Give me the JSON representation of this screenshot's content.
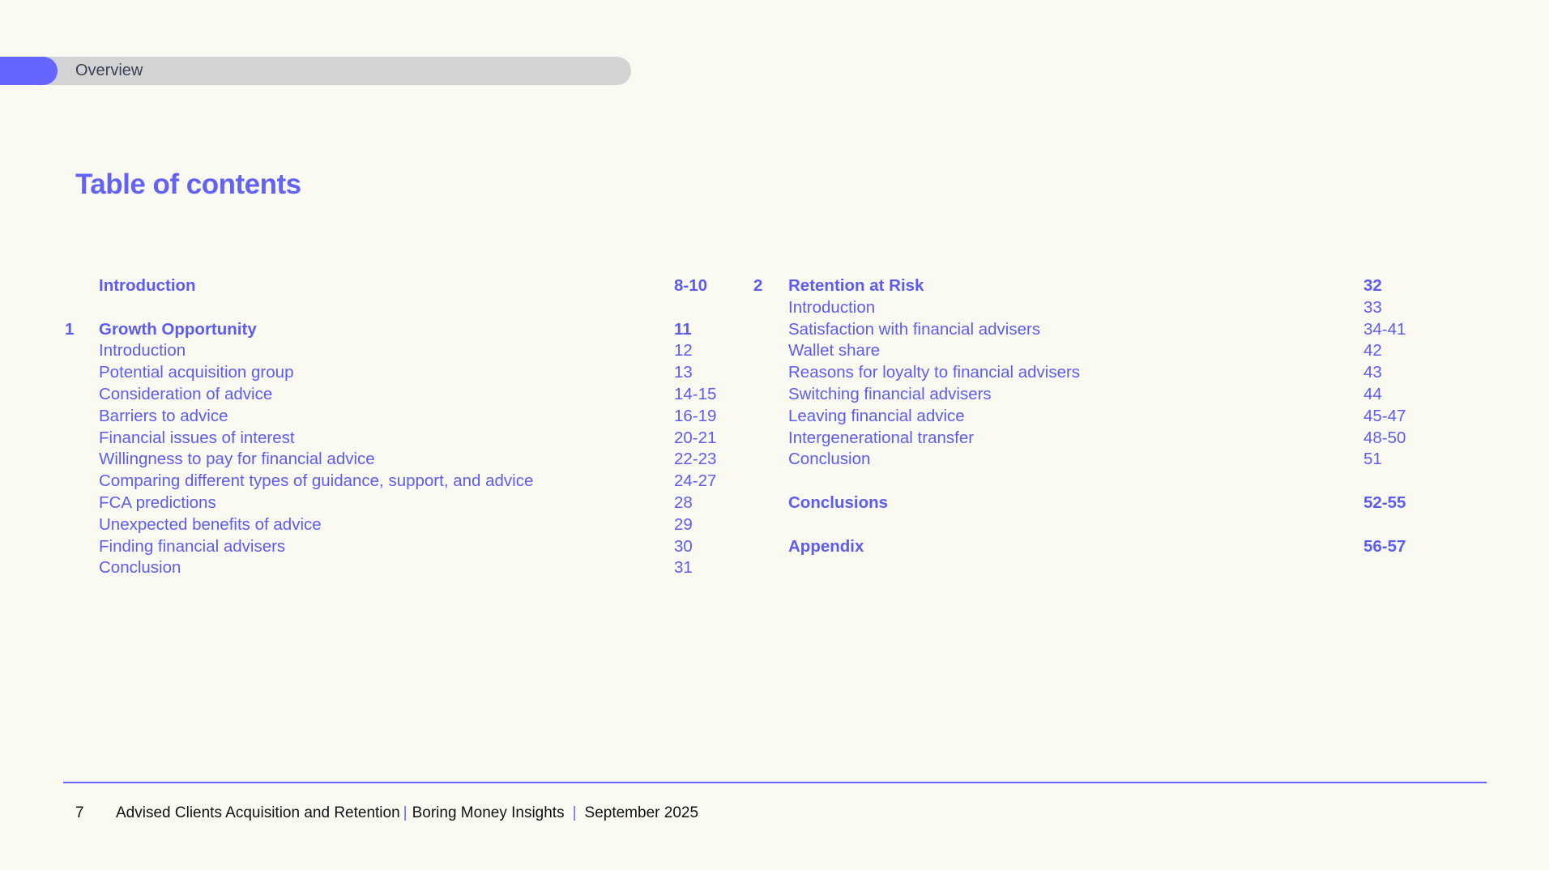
{
  "header": {
    "section_label": "Overview"
  },
  "title": "Table of contents",
  "toc_left": [
    {
      "num": "",
      "label": "Introduction",
      "pages": "8-10",
      "bold": true
    },
    {
      "num": "",
      "label": "",
      "pages": "",
      "bold": false
    },
    {
      "num": "1",
      "label": "Growth Opportunity",
      "pages": "11",
      "bold": true
    },
    {
      "num": "",
      "label": "Introduction",
      "pages": "12",
      "bold": false
    },
    {
      "num": "",
      "label": "Potential acquisition group",
      "pages": "13",
      "bold": false
    },
    {
      "num": "",
      "label": "Consideration of advice",
      "pages": "14-15",
      "bold": false
    },
    {
      "num": "",
      "label": "Barriers to advice",
      "pages": "16-19",
      "bold": false
    },
    {
      "num": "",
      "label": "Financial issues of interest",
      "pages": "20-21",
      "bold": false
    },
    {
      "num": "",
      "label": "Willingness to pay for financial advice",
      "pages": "22-23",
      "bold": false
    },
    {
      "num": "",
      "label": "Comparing different types of guidance, support, and advice",
      "pages": "24-27",
      "bold": false
    },
    {
      "num": "",
      "label": "FCA predictions",
      "pages": "28",
      "bold": false
    },
    {
      "num": "",
      "label": "Unexpected benefits of advice",
      "pages": "29",
      "bold": false
    },
    {
      "num": "",
      "label": "Finding financial advisers",
      "pages": "30",
      "bold": false
    },
    {
      "num": "",
      "label": "Conclusion",
      "pages": "31",
      "bold": false
    }
  ],
  "toc_right": [
    {
      "num": "2",
      "label": "Retention at Risk",
      "pages": "32",
      "bold": true
    },
    {
      "num": "",
      "label": "Introduction",
      "pages": "33",
      "bold": false
    },
    {
      "num": "",
      "label": "Satisfaction with financial advisers",
      "pages": "34-41",
      "bold": false
    },
    {
      "num": "",
      "label": "Wallet share",
      "pages": "42",
      "bold": false
    },
    {
      "num": "",
      "label": "Reasons for loyalty to financial advisers",
      "pages": "43",
      "bold": false
    },
    {
      "num": "",
      "label": "Switching financial advisers",
      "pages": "44",
      "bold": false
    },
    {
      "num": "",
      "label": "Leaving financial advice",
      "pages": "45-47",
      "bold": false
    },
    {
      "num": "",
      "label": "Intergenerational transfer",
      "pages": "48-50",
      "bold": false
    },
    {
      "num": "",
      "label": "Conclusion",
      "pages": "51",
      "bold": false
    },
    {
      "num": "",
      "label": "",
      "pages": "",
      "bold": false
    },
    {
      "num": "",
      "label": "Conclusions",
      "pages": "52-55",
      "bold": true
    },
    {
      "num": "",
      "label": "",
      "pages": "",
      "bold": false
    },
    {
      "num": "",
      "label": "Appendix",
      "pages": "56-57",
      "bold": true
    }
  ],
  "footer": {
    "page_number": "7",
    "report_title": "Advised Clients Acquisition and Retention",
    "publisher": "Boring Money Insights",
    "date": "September 2025",
    "separator": "|"
  },
  "colors": {
    "accent": "#6666ff",
    "text": "#5c5cf2",
    "background": "#fafaf3",
    "pill": "#d3d3d3"
  }
}
